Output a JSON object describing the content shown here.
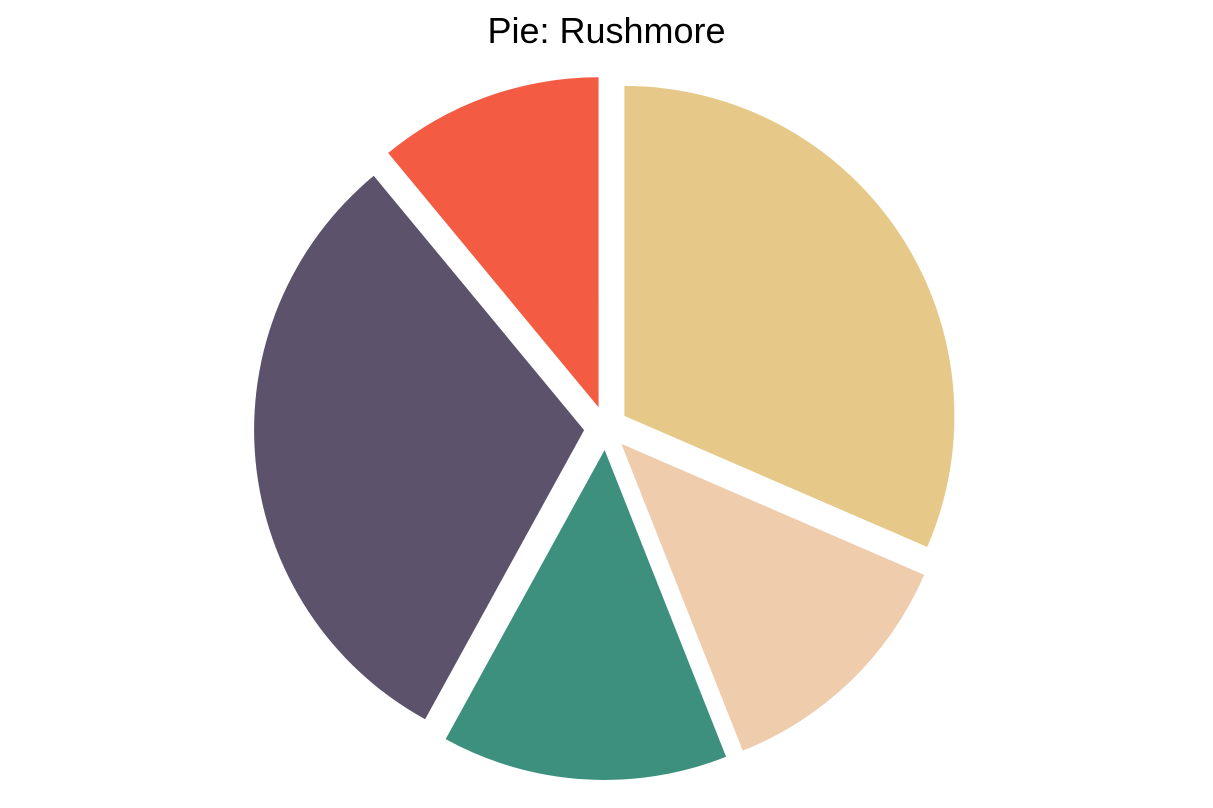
{
  "chart_data": {
    "type": "pie",
    "title": "Pie: Rushmore",
    "start_angle_deg": 0,
    "direction": "clockwise",
    "exploded": true,
    "legend": "none",
    "slices": [
      {
        "value": 31.5,
        "color": "#E6C989"
      },
      {
        "value": 12.5,
        "color": "#EECCAC"
      },
      {
        "value": 14.0,
        "color": "#3D907E"
      },
      {
        "value": 31.0,
        "color": "#5C526B"
      },
      {
        "value": 11.0,
        "color": "#F35B42"
      }
    ]
  }
}
